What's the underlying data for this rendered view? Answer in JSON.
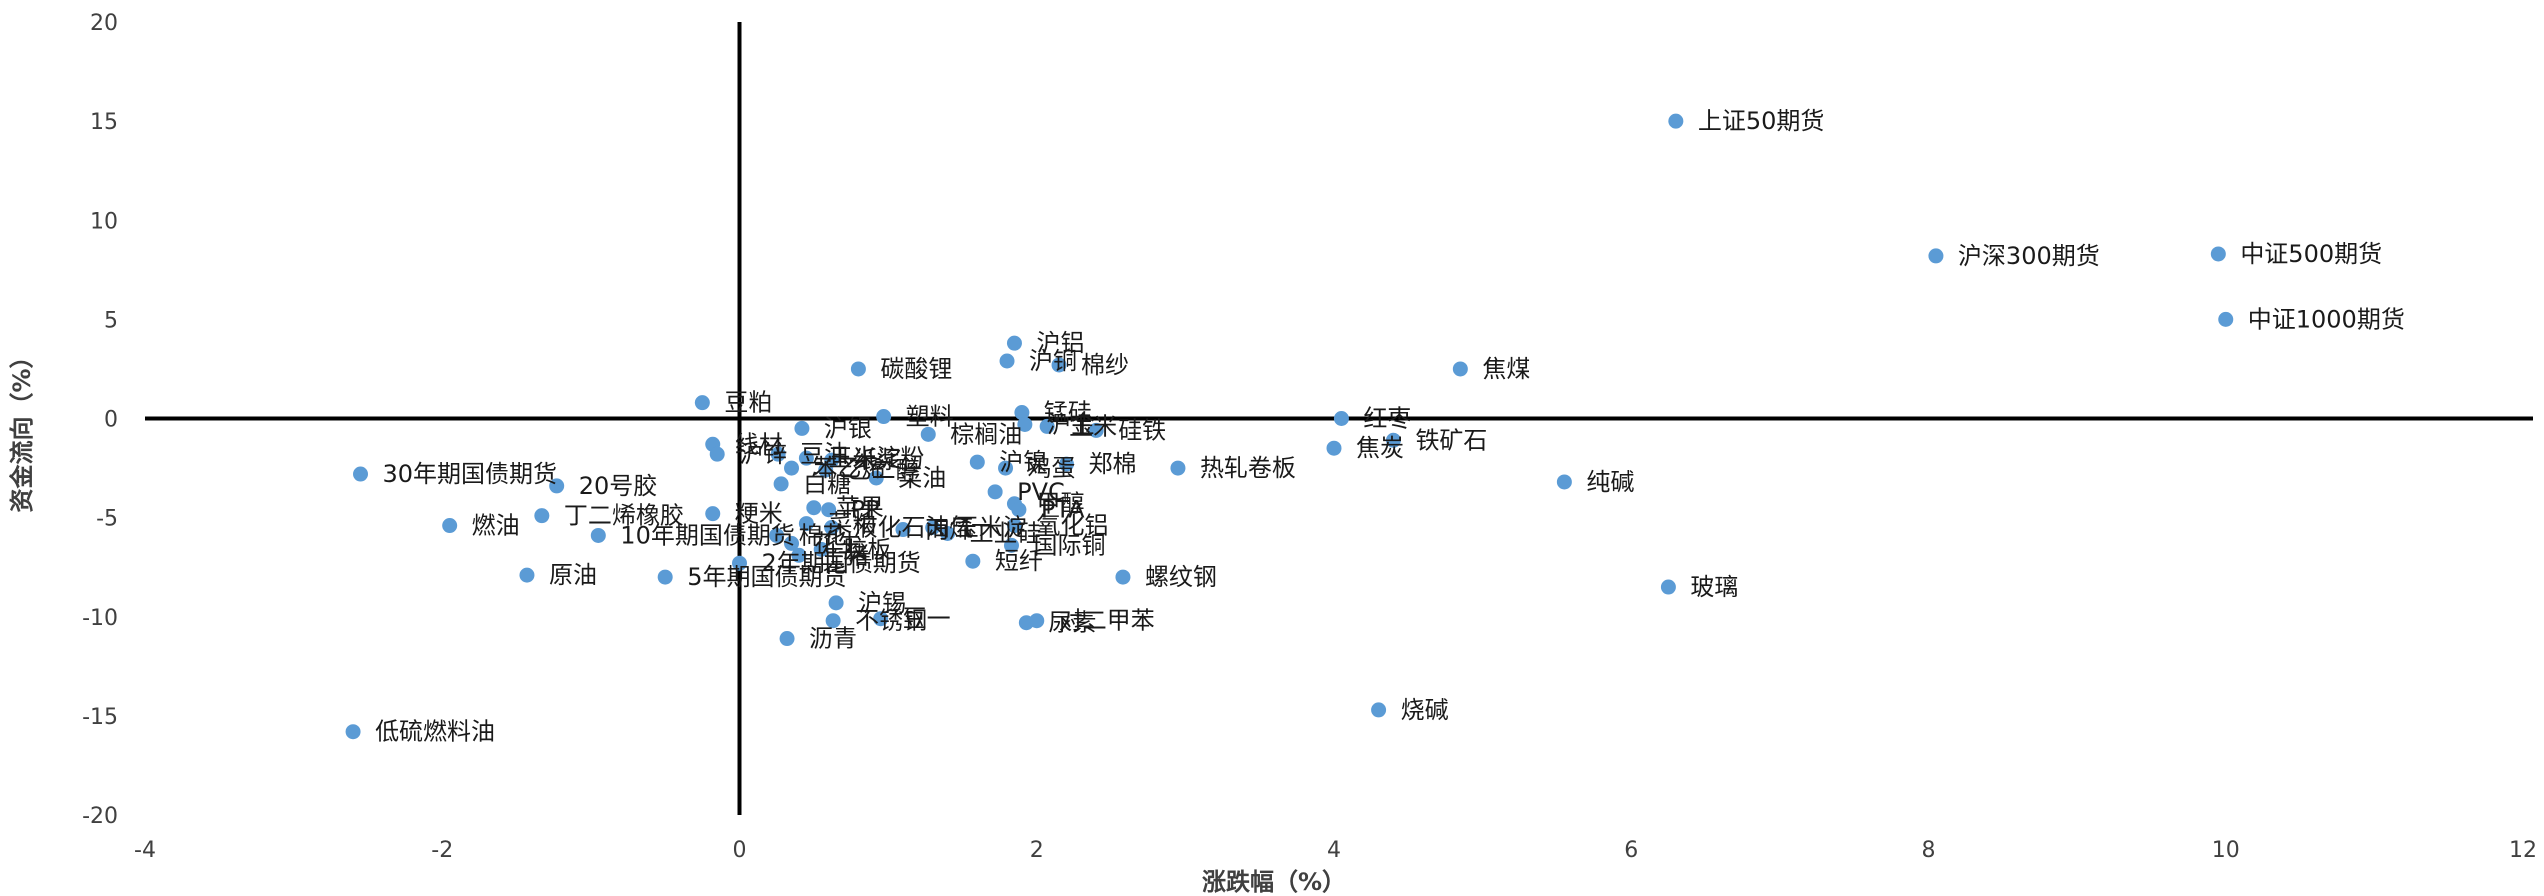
{
  "chart_data": {
    "type": "scatter",
    "title": "",
    "xlabel": "涨跌幅（%）",
    "ylabel": "资金流向（%）",
    "xlim": [
      -4,
      12
    ],
    "ylim": [
      -20,
      20
    ],
    "x_ticks": [
      "-4",
      "-2",
      "0",
      "2",
      "4",
      "6",
      "8",
      "10",
      "12"
    ],
    "y_ticks": [
      "20",
      "15",
      "10",
      "5",
      "0",
      "-5",
      "-10",
      "-15",
      "-20"
    ],
    "grid": false,
    "legend": "none",
    "marker_color": "#5b9bd5",
    "points": [
      {
        "name": "上证50期货",
        "x": 6.3,
        "y": 15.0
      },
      {
        "name": "沪深300期货",
        "x": 8.05,
        "y": 8.2
      },
      {
        "name": "中证500期货",
        "x": 9.95,
        "y": 8.3
      },
      {
        "name": "中证1000期货",
        "x": 10.0,
        "y": 5.0
      },
      {
        "name": "焦煤",
        "x": 4.85,
        "y": 2.5
      },
      {
        "name": "红枣",
        "x": 4.05,
        "y": 0.0
      },
      {
        "name": "焦炭",
        "x": 4.0,
        "y": -1.5
      },
      {
        "name": "铁矿石",
        "x": 4.4,
        "y": -1.1
      },
      {
        "name": "纯碱",
        "x": 5.55,
        "y": -3.2
      },
      {
        "name": "玻璃",
        "x": 6.25,
        "y": -8.5
      },
      {
        "name": "烧碱",
        "x": 4.3,
        "y": -14.7
      },
      {
        "name": "沪铝",
        "x": 1.85,
        "y": 3.8
      },
      {
        "name": "沪铜",
        "x": 1.8,
        "y": 2.9
      },
      {
        "name": "棉纱",
        "x": 2.15,
        "y": 2.7
      },
      {
        "name": "碳酸锂",
        "x": 0.8,
        "y": 2.5
      },
      {
        "name": "豆粕",
        "x": -0.25,
        "y": 0.8
      },
      {
        "name": "塑料",
        "x": 0.97,
        "y": 0.1
      },
      {
        "name": "锰硅",
        "x": 1.9,
        "y": 0.3
      },
      {
        "name": "沪银",
        "x": 0.42,
        "y": -0.5
      },
      {
        "name": "棕榈油",
        "x": 1.27,
        "y": -0.8
      },
      {
        "name": "沪金",
        "x": 1.92,
        "y": -0.3
      },
      {
        "name": "玉米",
        "x": 2.07,
        "y": -0.4
      },
      {
        "name": "硅铁",
        "x": 2.4,
        "y": -0.6
      },
      {
        "name": "线材",
        "x": -0.18,
        "y": -1.3
      },
      {
        "name": "沪锌",
        "x": -0.15,
        "y": -1.8
      },
      {
        "name": "豆油",
        "x": 0.26,
        "y": -1.8
      },
      {
        "name": "玉米淀粉",
        "x": 0.45,
        "y": -2.0
      },
      {
        "name": "纸浆",
        "x": 0.62,
        "y": -2.1
      },
      {
        "name": "苯乙烯",
        "x": 0.35,
        "y": -2.5
      },
      {
        "name": "乙二醇",
        "x": 0.58,
        "y": -2.6
      },
      {
        "name": "白糖",
        "x": 0.28,
        "y": -3.3
      },
      {
        "name": "菜油",
        "x": 0.92,
        "y": -3.0
      },
      {
        "name": "沪镍",
        "x": 1.6,
        "y": -2.2
      },
      {
        "name": "鸡蛋",
        "x": 1.79,
        "y": -2.5
      },
      {
        "name": "郑棉",
        "x": 2.2,
        "y": -2.3
      },
      {
        "name": "热轧卷板",
        "x": 2.95,
        "y": -2.5
      },
      {
        "name": "苹果",
        "x": 0.5,
        "y": -4.5
      },
      {
        "name": "PVC",
        "x": 1.72,
        "y": -3.7
      },
      {
        "name": "PP",
        "x": 0.6,
        "y": -4.6
      },
      {
        "name": "甲醇",
        "x": 1.85,
        "y": -4.3
      },
      {
        "name": "PTA",
        "x": 1.88,
        "y": -4.6
      },
      {
        "name": "粳米",
        "x": -0.18,
        "y": -4.8
      },
      {
        "name": "菜粕",
        "x": 0.45,
        "y": -5.3
      },
      {
        "name": "液化石油气",
        "x": 0.62,
        "y": -5.5
      },
      {
        "name": "丙烯",
        "x": 1.1,
        "y": -5.6
      },
      {
        "name": "玉米淀",
        "x": 1.3,
        "y": -5.5
      },
      {
        "name": "工业硅",
        "x": 1.4,
        "y": -5.8
      },
      {
        "name": "氧化铝",
        "x": 1.85,
        "y": -5.4
      },
      {
        "name": "国际铜",
        "x": 1.83,
        "y": -6.4
      },
      {
        "name": "棉花",
        "x": 0.25,
        "y": -5.9
      },
      {
        "name": "生猪",
        "x": 0.4,
        "y": -6.9
      },
      {
        "name": "花生",
        "x": 0.35,
        "y": -6.3
      },
      {
        "name": "胶板",
        "x": 0.55,
        "y": -6.6
      },
      {
        "name": "短纤",
        "x": 1.57,
        "y": -7.2
      },
      {
        "name": "螺纹钢",
        "x": 2.58,
        "y": -8.0
      },
      {
        "name": "30年期国债期货",
        "x": -2.55,
        "y": -2.8
      },
      {
        "name": "20号胶",
        "x": -1.23,
        "y": -3.4
      },
      {
        "name": "燃油",
        "x": -1.95,
        "y": -5.4
      },
      {
        "name": "丁二烯橡胶",
        "x": -1.33,
        "y": -4.9
      },
      {
        "name": "10年期国债期货",
        "x": -0.95,
        "y": -5.9
      },
      {
        "name": "原油",
        "x": -1.43,
        "y": -7.9
      },
      {
        "name": "5年期国债期货",
        "x": -0.5,
        "y": -8.0
      },
      {
        "name": "2年期国债期货",
        "x": 0.0,
        "y": -7.3
      },
      {
        "name": "沪锡",
        "x": 0.65,
        "y": -9.3
      },
      {
        "name": "不锈钢",
        "x": 0.63,
        "y": -10.2
      },
      {
        "name": "豆一",
        "x": 0.95,
        "y": -10.1
      },
      {
        "name": "尿素",
        "x": 1.93,
        "y": -10.3
      },
      {
        "name": "对二甲苯",
        "x": 2.0,
        "y": -10.2
      },
      {
        "name": "沥青",
        "x": 0.32,
        "y": -11.1
      },
      {
        "name": "低硫燃料油",
        "x": -2.6,
        "y": -15.8
      }
    ]
  }
}
